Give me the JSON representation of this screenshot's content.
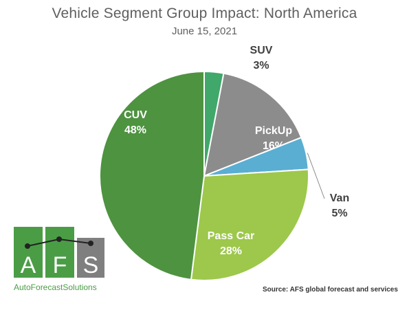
{
  "header": {
    "title": "Vehicle Segment Group Impact: North America",
    "subtitle": "June 15, 2021"
  },
  "source": "Source: AFS global forecast and services",
  "logo": {
    "letters": [
      "A",
      "F",
      "S"
    ],
    "tagline": "AutoForecastSolutions"
  },
  "chart_data": {
    "type": "pie",
    "title": "Vehicle Segment Group Impact: North America",
    "subtitle": "June 15, 2021",
    "slices": [
      {
        "name": "SUV",
        "value": 3,
        "label": "3%",
        "color": "#3fa86a"
      },
      {
        "name": "PickUp",
        "value": 16,
        "label": "16%",
        "color": "#8c8c8c"
      },
      {
        "name": "Van",
        "value": 5,
        "label": "5%",
        "color": "#5aaed2"
      },
      {
        "name": "Pass Car",
        "value": 28,
        "label": "28%",
        "color": "#9dc84b"
      },
      {
        "name": "CUV",
        "value": 48,
        "label": "48%",
        "color": "#4e9340"
      }
    ],
    "start_angle_deg": 0,
    "direction": "clockwise"
  },
  "colors": {
    "title_text": "#5f5f5f",
    "logo_green": "#4a9d45",
    "logo_gray": "#7f7f7f"
  }
}
